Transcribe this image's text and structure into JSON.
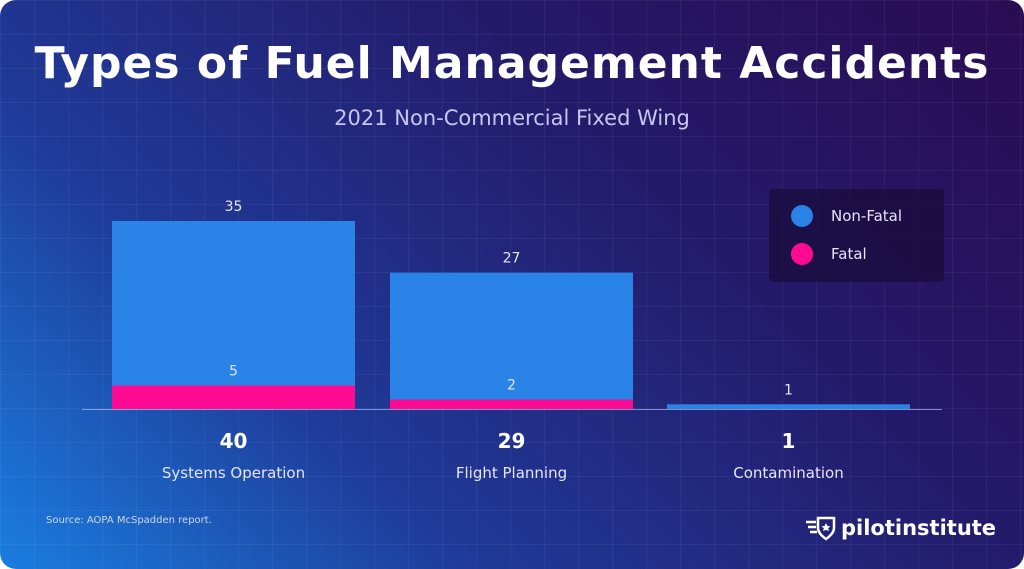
{
  "chart_data": {
    "type": "bar",
    "stacked": true,
    "title": "Types of Fuel Management Accidents",
    "subtitle": "2021 Non-Commercial Fixed Wing",
    "categories": [
      "Systems Operation",
      "Flight Planning",
      "Contamination"
    ],
    "totals": [
      "40",
      "29",
      "1"
    ],
    "series": [
      {
        "name": "Fatal",
        "values": [
          5,
          2,
          0
        ],
        "color": "#ff0a93"
      },
      {
        "name": "Non-Fatal",
        "values": [
          35,
          27,
          1
        ],
        "color": "#2a84e8"
      }
    ],
    "ylim": [
      0,
      40
    ],
    "legend_position": "top-right",
    "grid": false
  },
  "source": "Source: AOPA McSpadden report.",
  "logo": "pilotinstitute"
}
